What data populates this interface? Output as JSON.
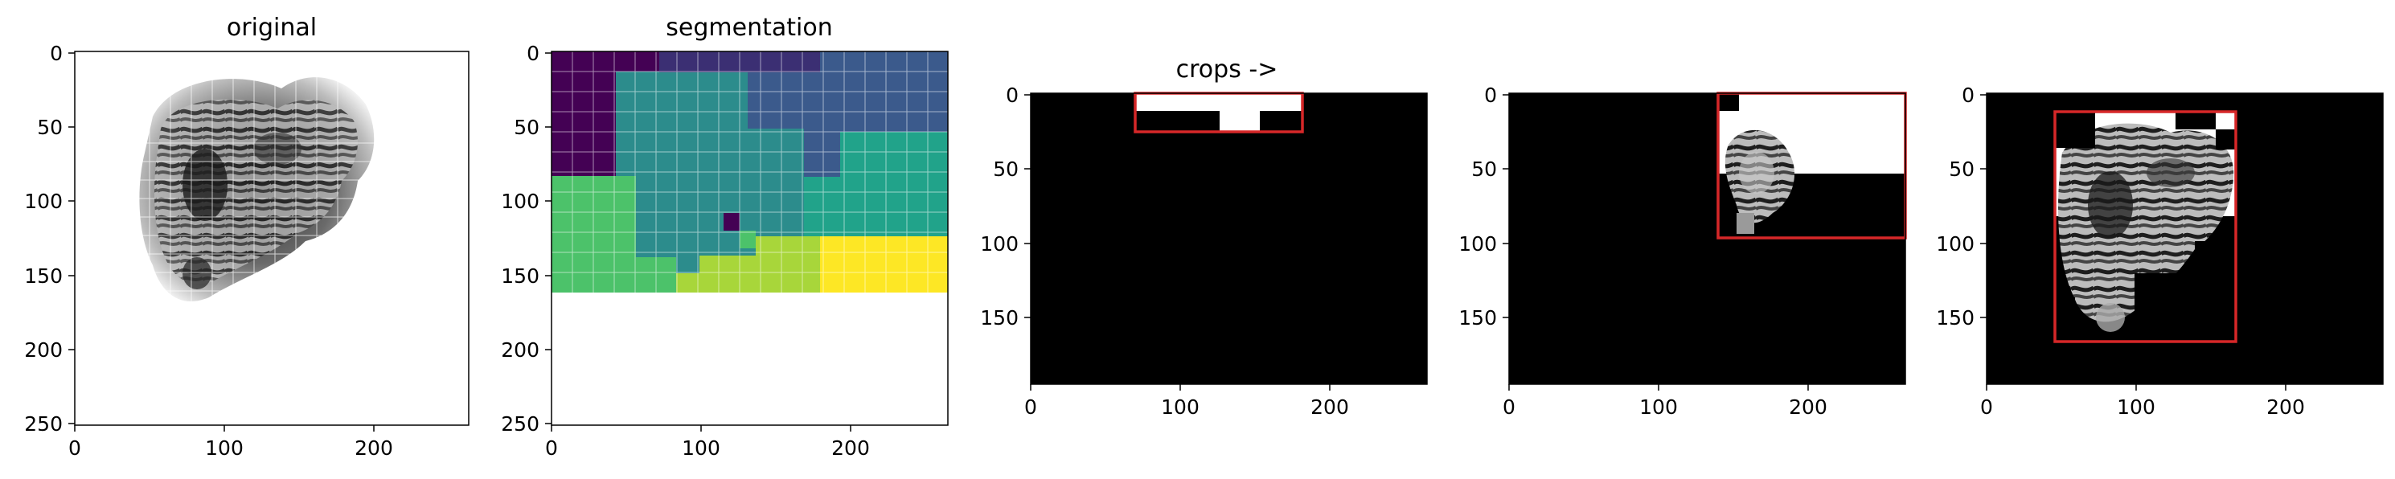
{
  "panels": [
    {
      "id": "original",
      "title": "original",
      "x_ticks": [
        "0",
        "100",
        "200"
      ],
      "y_ticks": [
        "0",
        "50",
        "100",
        "150",
        "200",
        "250"
      ]
    },
    {
      "id": "segmentation",
      "title": "segmentation",
      "x_ticks": [
        "0",
        "100",
        "200"
      ],
      "y_ticks": [
        "0",
        "50",
        "100",
        "150",
        "200",
        "250"
      ]
    },
    {
      "id": "crop1",
      "title": "crops ->",
      "x_ticks": [
        "0",
        "100",
        "200"
      ],
      "y_ticks": [
        "0",
        "50",
        "100",
        "150"
      ]
    },
    {
      "id": "crop2",
      "title": "",
      "x_ticks": [
        "0",
        "100",
        "200"
      ],
      "y_ticks": [
        "0",
        "50",
        "100",
        "150"
      ]
    },
    {
      "id": "crop3",
      "title": "",
      "x_ticks": [
        "0",
        "100",
        "200"
      ],
      "y_ticks": [
        "0",
        "50",
        "100",
        "150"
      ]
    }
  ],
  "colors": {
    "segment_dark_purple": "#440154",
    "segment_purple": "#3b2f73",
    "segment_blue": "#3b5a8c",
    "segment_teal": "#2c8c8c",
    "segment_green_teal": "#21a38a",
    "segment_green": "#4cc26a",
    "segment_lime": "#a8d63a",
    "segment_yellow": "#fde725",
    "crop_box": "#d62728"
  }
}
